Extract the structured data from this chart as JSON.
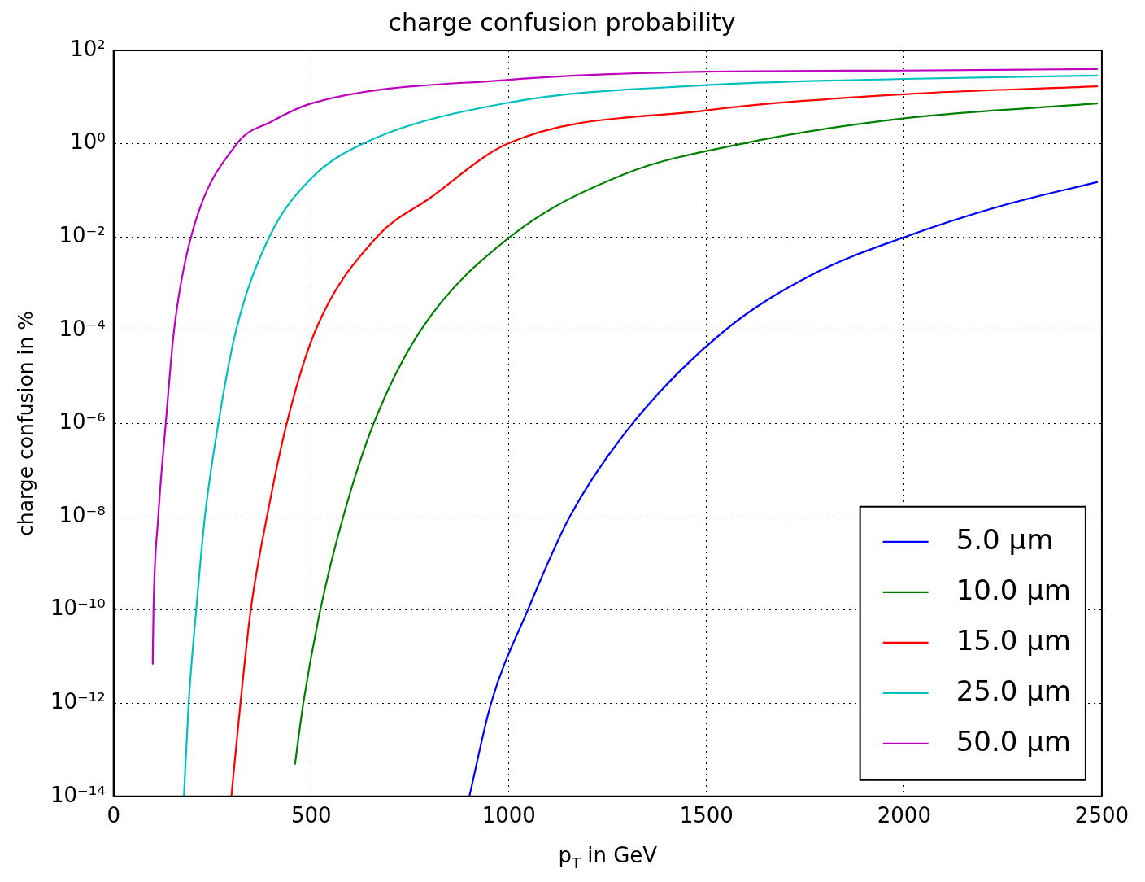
{
  "chart_data": {
    "type": "line",
    "title": "charge confusion probability",
    "xlabel": "p$_{T}$ in GeV",
    "ylabel": "charge confusion in %",
    "xlim": [
      0,
      2500
    ],
    "xticks": [
      0,
      500,
      1000,
      1500,
      2000,
      2500
    ],
    "ylim": [
      1e-14,
      100
    ],
    "yticks": [
      {
        "value": 1e-14,
        "label": "10⁻¹⁴"
      },
      {
        "value": 1e-12,
        "label": "10⁻¹²"
      },
      {
        "value": 1e-10,
        "label": "10⁻¹⁰"
      },
      {
        "value": 1e-08,
        "label": "10⁻⁸"
      },
      {
        "value": 1e-06,
        "label": "10⁻⁶"
      },
      {
        "value": 0.0001,
        "label": "10⁻⁴"
      },
      {
        "value": 0.01,
        "label": "10⁻²"
      },
      {
        "value": 1,
        "label": "10⁰"
      },
      {
        "value": 100,
        "label": "10²"
      }
    ],
    "log": "y",
    "grid": true,
    "legend": "bottom right",
    "marker": "none",
    "line_style": "solid",
    "series": [
      {
        "name": "5.0 μm",
        "color": "#0000ff",
        "x": [
          900,
          955,
          1048,
          1154,
          1313,
          1547,
          1770,
          2002,
          2244,
          2488
        ],
        "values": [
          1e-14,
          1e-12,
          1e-10,
          1e-08,
          1e-06,
          0.0001,
          0.0016,
          0.01,
          0.046,
          0.15
        ]
      },
      {
        "name": "10.0 μm",
        "color": "#008000",
        "x": [
          459,
          480,
          523,
          581,
          658,
          777,
          1003,
          1291,
          1590,
          2000,
          2488
        ],
        "values": [
          5e-14,
          1e-12,
          1e-10,
          1e-08,
          1e-06,
          0.0001,
          0.01,
          0.22,
          1,
          3.5,
          7.3
        ]
      },
      {
        "name": "15.0 μm",
        "color": "#ff0000",
        "x": [
          298,
          321,
          347,
          388,
          438,
          511,
          666,
          800,
          997,
          1500,
          2000,
          2488
        ],
        "values": [
          1e-14,
          1e-12,
          1e-10,
          1e-08,
          1e-06,
          0.0001,
          0.01,
          0.068,
          1,
          5.2,
          11.5,
          17
        ]
      },
      {
        "name": "25.0 μm",
        "color": "#00bfbf",
        "x": [
          178,
          190,
          209,
          231,
          265,
          310,
          394,
          500,
          631,
          1000,
          1500,
          2000,
          2488
        ],
        "values": [
          1e-14,
          1e-12,
          1e-10,
          1e-08,
          1e-06,
          0.0001,
          0.01,
          0.18,
          1,
          7.6,
          18,
          24.5,
          29
        ]
      },
      {
        "name": "50.0 μm",
        "color": "#bf00bf",
        "x": [
          99,
          101,
          113,
          132,
          153,
          196,
          312,
          400,
          500,
          1000,
          1500,
          2000,
          2488
        ],
        "values": [
          7e-12,
          1e-10,
          1e-08,
          1e-06,
          0.0001,
          0.01,
          1,
          3,
          7.3,
          23.5,
          35,
          37,
          40
        ]
      }
    ]
  }
}
